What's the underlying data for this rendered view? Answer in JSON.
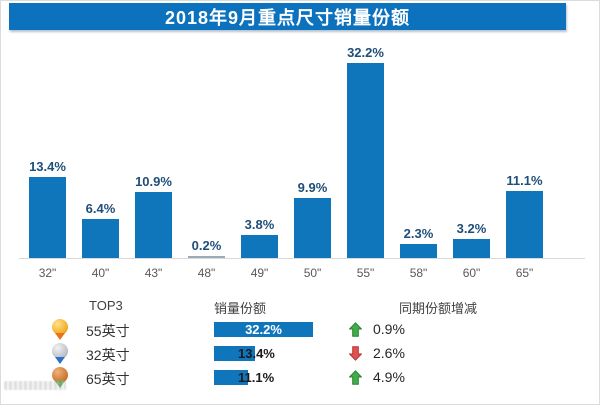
{
  "title": "2018年9月重点尺寸销量份额",
  "chart_data": {
    "type": "bar",
    "title": "2018年9月重点尺寸销量份额",
    "categories": [
      "32\"",
      "40\"",
      "43\"",
      "48\"",
      "49\"",
      "50\"",
      "55\"",
      "58\"",
      "60\"",
      "65\""
    ],
    "values": [
      13.4,
      6.4,
      10.9,
      0.2,
      3.8,
      9.9,
      32.2,
      2.3,
      3.2,
      11.1
    ],
    "labels": [
      "13.4%",
      "6.4%",
      "10.9%",
      "0.2%",
      "3.8%",
      "9.9%",
      "32.2%",
      "2.3%",
      "3.2%",
      "11.1%"
    ],
    "xlabel": "",
    "ylabel": "",
    "ylim": [
      0,
      33
    ],
    "grid": false,
    "legend": "none"
  },
  "table": {
    "headers": {
      "rank": "TOP3",
      "share": "销量份额",
      "change": "同期份额增减"
    },
    "rows": [
      {
        "medal": "gold",
        "size": "55英寸",
        "share": 32.2,
        "share_label": "32.2%",
        "trend": "up",
        "change": "0.9%"
      },
      {
        "medal": "silver",
        "size": "32英寸",
        "share": 13.4,
        "share_label": "13.4%",
        "trend": "down",
        "change": "2.6%"
      },
      {
        "medal": "bronze",
        "size": "65英寸",
        "share": 11.1,
        "share_label": "11.1%",
        "trend": "up",
        "change": "4.9%"
      }
    ]
  },
  "colors": {
    "title_bar": "#0d72be",
    "bar": "#1076bc",
    "tiny_bar": "#9aaab8",
    "value_label": "#1f4e79",
    "tick_label": "#595959",
    "up_arrow": "#3fae49",
    "up_arrow_edge": "#2e7d32",
    "down_arrow": "#e25050",
    "down_arrow_edge": "#b23535"
  }
}
